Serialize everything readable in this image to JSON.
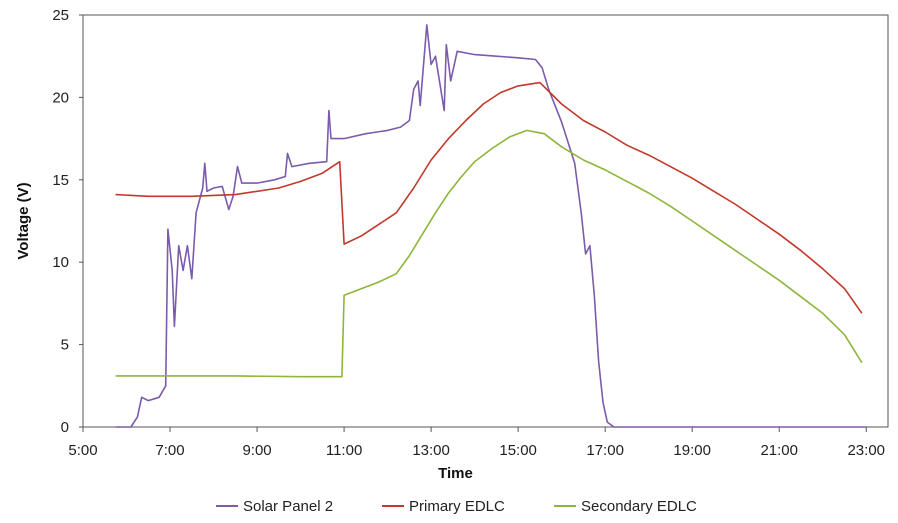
{
  "chart_data": {
    "type": "line",
    "xlabel": "Time",
    "ylabel": "Voltage (V)",
    "xlim": [
      5,
      23.5
    ],
    "ylim": [
      0,
      25
    ],
    "x_ticks": [
      "5:00",
      "7:00",
      "9:00",
      "11:00",
      "13:00",
      "15:00",
      "17:00",
      "19:00",
      "21:00",
      "23:00"
    ],
    "y_ticks": [
      "0",
      "5",
      "10",
      "15",
      "20",
      "25"
    ],
    "grid": false,
    "legend_position": "bottom",
    "series": [
      {
        "name": "Solar Panel 2",
        "color": "#7B5BAA",
        "points": [
          [
            5.75,
            0
          ],
          [
            6.1,
            0
          ],
          [
            6.25,
            0.6
          ],
          [
            6.35,
            1.8
          ],
          [
            6.5,
            1.6
          ],
          [
            6.75,
            1.8
          ],
          [
            6.9,
            2.5
          ],
          [
            6.95,
            12
          ],
          [
            7.05,
            9.5
          ],
          [
            7.1,
            6.1
          ],
          [
            7.2,
            11
          ],
          [
            7.3,
            9.5
          ],
          [
            7.4,
            11
          ],
          [
            7.5,
            9
          ],
          [
            7.6,
            13
          ],
          [
            7.75,
            14.5
          ],
          [
            7.8,
            16
          ],
          [
            7.85,
            14.3
          ],
          [
            8.0,
            14.5
          ],
          [
            8.2,
            14.6
          ],
          [
            8.35,
            13.2
          ],
          [
            8.45,
            14
          ],
          [
            8.55,
            15.8
          ],
          [
            8.65,
            14.8
          ],
          [
            9.0,
            14.8
          ],
          [
            9.4,
            15
          ],
          [
            9.65,
            15.2
          ],
          [
            9.7,
            16.6
          ],
          [
            9.8,
            15.8
          ],
          [
            10.2,
            16
          ],
          [
            10.6,
            16.1
          ],
          [
            10.65,
            19.2
          ],
          [
            10.7,
            17.5
          ],
          [
            11.0,
            17.5
          ],
          [
            11.5,
            17.8
          ],
          [
            12.0,
            18
          ],
          [
            12.3,
            18.2
          ],
          [
            12.5,
            18.6
          ],
          [
            12.6,
            20.5
          ],
          [
            12.7,
            21
          ],
          [
            12.75,
            19.5
          ],
          [
            12.9,
            24.4
          ],
          [
            13.0,
            22
          ],
          [
            13.1,
            22.5
          ],
          [
            13.3,
            19.2
          ],
          [
            13.35,
            23.2
          ],
          [
            13.45,
            21
          ],
          [
            13.6,
            22.8
          ],
          [
            14.0,
            22.6
          ],
          [
            14.5,
            22.5
          ],
          [
            15.0,
            22.4
          ],
          [
            15.4,
            22.3
          ],
          [
            15.55,
            21.8
          ],
          [
            15.7,
            20.5
          ],
          [
            16.0,
            18.5
          ],
          [
            16.3,
            16
          ],
          [
            16.45,
            13
          ],
          [
            16.55,
            10.5
          ],
          [
            16.65,
            11
          ],
          [
            16.75,
            8
          ],
          [
            16.85,
            4
          ],
          [
            16.95,
            1.5
          ],
          [
            17.05,
            0.3
          ],
          [
            17.2,
            0
          ],
          [
            20.0,
            0
          ],
          [
            23.0,
            0
          ]
        ]
      },
      {
        "name": "Primary EDLC",
        "color": "#C0392B",
        "points": [
          [
            5.75,
            14.1
          ],
          [
            6.5,
            14.0
          ],
          [
            7.5,
            14.0
          ],
          [
            8.5,
            14.1
          ],
          [
            9.5,
            14.5
          ],
          [
            10.0,
            14.9
          ],
          [
            10.5,
            15.4
          ],
          [
            10.9,
            16.1
          ],
          [
            11.0,
            11.1
          ],
          [
            11.4,
            11.6
          ],
          [
            11.8,
            12.3
          ],
          [
            12.2,
            13.0
          ],
          [
            12.6,
            14.5
          ],
          [
            13.0,
            16.2
          ],
          [
            13.4,
            17.5
          ],
          [
            13.8,
            18.6
          ],
          [
            14.2,
            19.6
          ],
          [
            14.6,
            20.3
          ],
          [
            15.0,
            20.7
          ],
          [
            15.5,
            20.9
          ],
          [
            16.0,
            19.6
          ],
          [
            16.5,
            18.6
          ],
          [
            17.0,
            17.9
          ],
          [
            17.5,
            17.1
          ],
          [
            18.0,
            16.5
          ],
          [
            18.5,
            15.8
          ],
          [
            19.0,
            15.1
          ],
          [
            19.5,
            14.3
          ],
          [
            20.0,
            13.5
          ],
          [
            20.5,
            12.6
          ],
          [
            21.0,
            11.7
          ],
          [
            21.5,
            10.7
          ],
          [
            22.0,
            9.6
          ],
          [
            22.5,
            8.4
          ],
          [
            22.9,
            6.9
          ]
        ]
      },
      {
        "name": "Secondary EDLC",
        "color": "#8DB63C",
        "points": [
          [
            5.75,
            3.1
          ],
          [
            7.0,
            3.1
          ],
          [
            8.5,
            3.1
          ],
          [
            10.0,
            3.05
          ],
          [
            10.95,
            3.05
          ],
          [
            11.0,
            8.0
          ],
          [
            11.4,
            8.4
          ],
          [
            11.8,
            8.8
          ],
          [
            12.2,
            9.3
          ],
          [
            12.5,
            10.4
          ],
          [
            12.8,
            11.7
          ],
          [
            13.1,
            13.0
          ],
          [
            13.4,
            14.2
          ],
          [
            13.7,
            15.2
          ],
          [
            14.0,
            16.1
          ],
          [
            14.4,
            16.9
          ],
          [
            14.8,
            17.6
          ],
          [
            15.2,
            18.0
          ],
          [
            15.6,
            17.8
          ],
          [
            16.0,
            17.0
          ],
          [
            16.5,
            16.2
          ],
          [
            17.0,
            15.6
          ],
          [
            17.5,
            14.9
          ],
          [
            18.0,
            14.2
          ],
          [
            18.5,
            13.4
          ],
          [
            19.0,
            12.5
          ],
          [
            19.5,
            11.6
          ],
          [
            20.0,
            10.7
          ],
          [
            20.5,
            9.8
          ],
          [
            21.0,
            8.9
          ],
          [
            21.5,
            7.9
          ],
          [
            22.0,
            6.9
          ],
          [
            22.5,
            5.6
          ],
          [
            22.9,
            3.9
          ]
        ]
      }
    ]
  }
}
